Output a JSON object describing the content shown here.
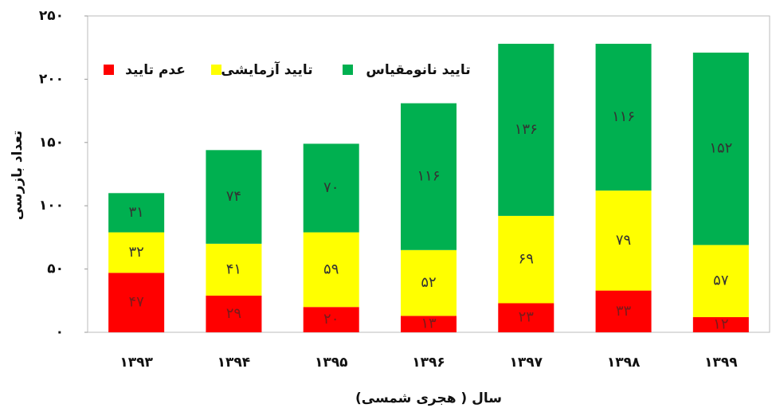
{
  "chart_data": {
    "type": "stacked_bar",
    "xlabel": "سال ( هجری شمسی)",
    "ylabel": "تعداد بازرسی",
    "categories": [
      "۱۳۹۳",
      "۱۳۹۴",
      "۱۳۹۵",
      "۱۳۹۶",
      "۱۳۹۷",
      "۱۳۹۸",
      "۱۳۹۹"
    ],
    "series": [
      {
        "name": "عدم تایید",
        "color": "#ff0000",
        "values": [
          47,
          29,
          20,
          13,
          23,
          33,
          12
        ],
        "value_labels": [
          "۴۷",
          "۲۹",
          "۲۰",
          "۱۳",
          "۲۳",
          "۳۳",
          "۱۲"
        ]
      },
      {
        "name": "تایید آزمایشی",
        "color": "#ffff00",
        "values": [
          32,
          41,
          59,
          52,
          69,
          79,
          57
        ],
        "value_labels": [
          "۳۲",
          "۴۱",
          "۵۹",
          "۵۲",
          "۶۹",
          "۷۹",
          "۵۷"
        ]
      },
      {
        "name": "تایید نانومقیاس",
        "color": "#00b050",
        "values": [
          31,
          74,
          70,
          116,
          136,
          116,
          152
        ],
        "value_labels": [
          "۳۱",
          "۷۴",
          "۷۰",
          "۱۱۶",
          "۱۳۶",
          "۱۱۶",
          "۱۵۲"
        ]
      }
    ],
    "ylim": [
      0,
      250
    ],
    "yticks": [
      {
        "value": 0,
        "label": "۰"
      },
      {
        "value": 50,
        "label": "۵۰"
      },
      {
        "value": 100,
        "label": "۱۰۰"
      },
      {
        "value": 150,
        "label": "۱۵۰"
      },
      {
        "value": 200,
        "label": "۲۰۰"
      },
      {
        "value": 250,
        "label": "۲۵۰"
      }
    ],
    "legend": "top-left"
  }
}
